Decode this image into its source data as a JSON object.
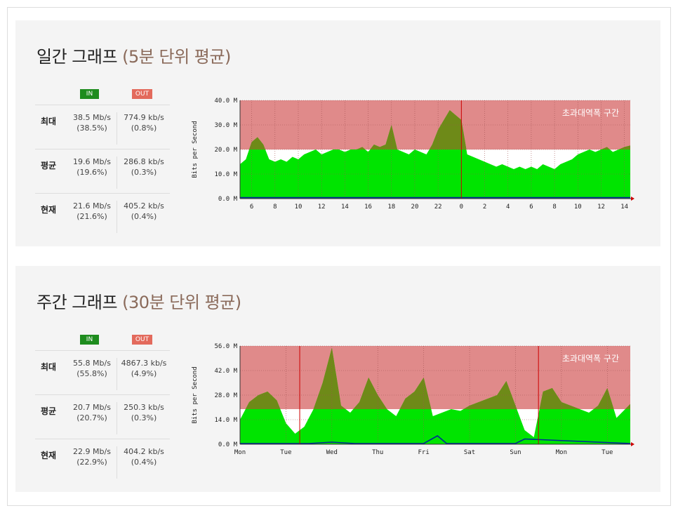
{
  "sections": [
    {
      "title_main": "일간 그래프",
      "title_sub": "(5분 단위 평균)",
      "badge_in": "IN",
      "badge_out": "OUT",
      "rows": [
        {
          "label": "최대",
          "in_val": "38.5 Mb/s",
          "in_pct": "(38.5%)",
          "out_val": "774.9 kb/s",
          "out_pct": "(0.8%)"
        },
        {
          "label": "평균",
          "in_val": "19.6 Mb/s",
          "in_pct": "(19.6%)",
          "out_val": "286.8 kb/s",
          "out_pct": "(0.3%)"
        },
        {
          "label": "현재",
          "in_val": "21.6 Mb/s",
          "in_pct": "(21.6%)",
          "out_val": "405.2 kb/s",
          "out_pct": "(0.4%)"
        }
      ]
    },
    {
      "title_main": "주간 그래프",
      "title_sub": "(30분 단위 평균)",
      "badge_in": "IN",
      "badge_out": "OUT",
      "rows": [
        {
          "label": "최대",
          "in_val": "55.8 Mb/s",
          "in_pct": "(55.8%)",
          "out_val": "4867.3 kb/s",
          "out_pct": "(4.9%)"
        },
        {
          "label": "평균",
          "in_val": "20.7 Mb/s",
          "in_pct": "(20.7%)",
          "out_val": "250.3 kb/s",
          "out_pct": "(0.3%)"
        },
        {
          "label": "현재",
          "in_val": "22.9 Mb/s",
          "in_pct": "(22.9%)",
          "out_val": "404.2 kb/s",
          "out_pct": "(0.4%)"
        }
      ]
    }
  ],
  "chart_data": [
    {
      "type": "area",
      "ylabel": "Bits per Second",
      "annotation": "초과대역폭 구간",
      "threshold": 20,
      "ylim": [
        0,
        40
      ],
      "yticks": [
        "0.0 M",
        "10.0 M",
        "20.0 M",
        "30.0 M",
        "40.0 M"
      ],
      "ytick_values": [
        0,
        10,
        20,
        30,
        40
      ],
      "xlim": [
        5,
        38.5
      ],
      "xticks": [
        "6",
        "8",
        "10",
        "12",
        "14",
        "16",
        "18",
        "20",
        "22",
        "0",
        "2",
        "4",
        "6",
        "8",
        "10",
        "12",
        "14"
      ],
      "xtick_values": [
        6,
        8,
        10,
        12,
        14,
        16,
        18,
        20,
        22,
        24,
        26,
        28,
        30,
        32,
        34,
        36,
        38
      ],
      "grid": true,
      "colors": {
        "in": "#00e400",
        "over": "#e08a8a",
        "in_over": "#6e8a18",
        "out": "#002a97",
        "marker": "#cc0000"
      },
      "series": [
        {
          "name": "IN",
          "x": [
            5,
            5.5,
            6,
            6.5,
            7,
            7.5,
            8,
            8.5,
            9,
            9.5,
            10,
            10.5,
            11,
            11.5,
            12,
            12.5,
            13,
            13.5,
            14,
            14.5,
            15,
            15.5,
            16,
            16.5,
            17,
            17.5,
            18,
            18.5,
            19,
            19.5,
            20,
            20.5,
            21,
            21.5,
            22,
            22.5,
            23,
            23.5,
            24,
            24.5,
            25,
            25.5,
            26,
            26.5,
            27,
            27.5,
            28,
            28.5,
            29,
            29.5,
            30,
            30.5,
            31,
            31.5,
            32,
            32.5,
            33,
            33.5,
            34,
            34.5,
            35,
            35.5,
            36,
            36.5,
            37,
            37.5,
            38,
            38.5
          ],
          "values": [
            14,
            16,
            23,
            25,
            22,
            16,
            15,
            16,
            15,
            17,
            16,
            18,
            19,
            20,
            18,
            19,
            20,
            20,
            19,
            20,
            20,
            21,
            19,
            22,
            21,
            22,
            30,
            20,
            19,
            18,
            20,
            19,
            18,
            22,
            28,
            32,
            36,
            34,
            32,
            18,
            17,
            16,
            15,
            14,
            13,
            14,
            13,
            12,
            13,
            12,
            13,
            12,
            14,
            13,
            12,
            14,
            15,
            16,
            18,
            19,
            20,
            19,
            20,
            21,
            19,
            20,
            21,
            21.6
          ]
        },
        {
          "name": "OUT",
          "x": [
            5,
            38.5
          ],
          "values": [
            0.4,
            0.4
          ]
        }
      ],
      "markers_x": [
        24
      ]
    },
    {
      "type": "area",
      "ylabel": "Bits per Second",
      "annotation": "초과대역폭 구간",
      "threshold": 20,
      "ylim": [
        0,
        56
      ],
      "yticks": [
        "0.0 M",
        "14.0 M",
        "28.0 M",
        "42.0 M",
        "56.0 M"
      ],
      "ytick_values": [
        0,
        14,
        28,
        42,
        56
      ],
      "xlim": [
        0,
        8.5
      ],
      "xticks": [
        "Mon",
        "Tue",
        "Wed",
        "Thu",
        "Fri",
        "Sat",
        "Sun",
        "Mon",
        "Tue"
      ],
      "xtick_values": [
        0,
        1,
        2,
        3,
        4,
        5,
        6,
        7,
        8
      ],
      "grid": true,
      "colors": {
        "in": "#00e400",
        "over": "#e08a8a",
        "in_over": "#6e8a18",
        "out": "#002a97",
        "marker": "#cc0000"
      },
      "series": [
        {
          "name": "IN",
          "x": [
            0,
            0.2,
            0.4,
            0.6,
            0.8,
            1,
            1.2,
            1.4,
            1.6,
            1.8,
            2,
            2.2,
            2.4,
            2.6,
            2.8,
            3,
            3.2,
            3.4,
            3.6,
            3.8,
            4,
            4.2,
            4.4,
            4.6,
            4.8,
            5,
            5.2,
            5.4,
            5.6,
            5.8,
            6,
            6.2,
            6.4,
            6.6,
            6.8,
            7,
            7.2,
            7.4,
            7.6,
            7.8,
            8,
            8.2,
            8.5
          ],
          "values": [
            14,
            24,
            28,
            30,
            25,
            12,
            6,
            10,
            20,
            35,
            55,
            22,
            18,
            24,
            38,
            28,
            20,
            16,
            26,
            30,
            38,
            16,
            18,
            20,
            19,
            22,
            24,
            26,
            28,
            36,
            22,
            8,
            4,
            30,
            32,
            24,
            22,
            20,
            18,
            22,
            32,
            15,
            22.9
          ]
        },
        {
          "name": "OUT",
          "x": [
            0,
            1.5,
            2,
            2.5,
            4,
            4.3,
            4.5,
            6,
            6.2,
            8.5
          ],
          "values": [
            0.4,
            0.4,
            1.2,
            0.4,
            0.4,
            4.8,
            0.4,
            0.4,
            3,
            0.4
          ]
        }
      ],
      "markers_x": [
        1.3,
        6.5
      ]
    }
  ]
}
